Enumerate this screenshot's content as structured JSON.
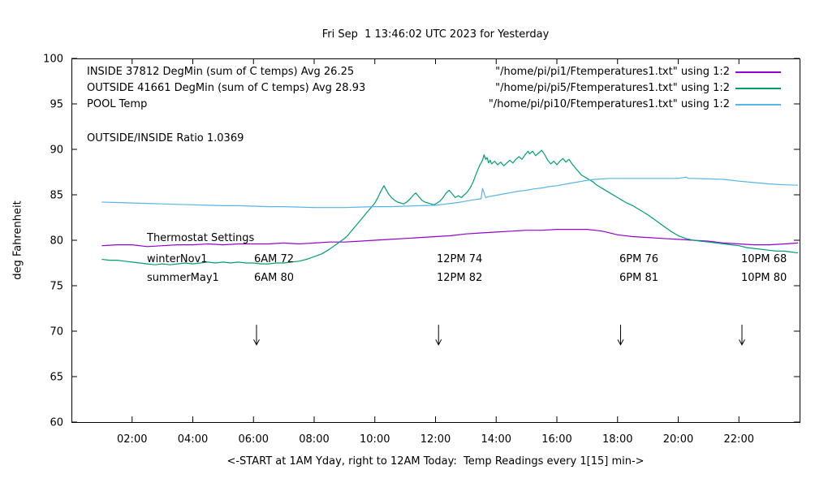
{
  "title": "Fri Sep  1 13:46:02 UTC 2023 for Yesterday",
  "xlabel": "<-START at 1AM Yday, right to 12AM Today:  Temp Readings every 1[15] min->",
  "ylabel": "deg Fahrenheit",
  "legend": [
    {
      "name": "INSIDE 37812 DegMin (sum of C temps) Avg 26.25",
      "file": "\"/home/pi/pi1/Ftemperatures1.txt\" using 1:2",
      "color": "#9400d3"
    },
    {
      "name": "OUTSIDE 41661 DegMin (sum of C temps) Avg 28.93",
      "file": "\"/home/pi/pi5/Ftemperatures1.txt\" using 1:2",
      "color": "#009e73"
    },
    {
      "name": "POOL Temp",
      "file": "\"/home/pi/pi10/Ftemperatures1.txt\" using 1:2",
      "color": "#56b4e9"
    }
  ],
  "annotations": {
    "ratio": "OUTSIDE/INSIDE Ratio 1.0369",
    "thermostat_title": "Thermostat Settings"
  },
  "thermostat": {
    "rows": [
      {
        "cells": [
          "winterNov1",
          "6AM 72",
          "12PM 74",
          "6PM 76",
          "10PM 68"
        ]
      },
      {
        "cells": [
          "summerMay1",
          "6AM 80",
          "12PM 82",
          "6PM 81",
          "10PM 80"
        ]
      }
    ]
  },
  "chart_data": {
    "type": "line",
    "title": "Fri Sep  1 13:46:02 UTC 2023 for Yesterday",
    "xlabel": "<-START at 1AM Yday, right to 12AM Today:  Temp Readings every 1[15] min->",
    "ylabel": "deg Fahrenheit",
    "xlim": [
      0,
      24
    ],
    "ylim": [
      60,
      100
    ],
    "grid": false,
    "legend_position": "top-right",
    "xticks": [
      {
        "v": 2,
        "label": "02:00"
      },
      {
        "v": 4,
        "label": "04:00"
      },
      {
        "v": 6,
        "label": "06:00"
      },
      {
        "v": 8,
        "label": "08:00"
      },
      {
        "v": 10,
        "label": "10:00"
      },
      {
        "v": 12,
        "label": "12:00"
      },
      {
        "v": 14,
        "label": "14:00"
      },
      {
        "v": 16,
        "label": "16:00"
      },
      {
        "v": 18,
        "label": "18:00"
      },
      {
        "v": 20,
        "label": "20:00"
      },
      {
        "v": 22,
        "label": "22:00"
      }
    ],
    "yticks": [
      60,
      65,
      70,
      75,
      80,
      85,
      90,
      95,
      100
    ],
    "arrows_x": [
      6.1,
      12.1,
      18.1,
      22.1
    ],
    "arrow_y": [
      70.7,
      68.5
    ],
    "series": [
      {
        "name": "INSIDE",
        "color": "#9400d3",
        "points": [
          [
            1,
            79.4
          ],
          [
            1.5,
            79.5
          ],
          [
            2,
            79.5
          ],
          [
            2.5,
            79.3
          ],
          [
            3,
            79.4
          ],
          [
            3.5,
            79.5
          ],
          [
            4,
            79.5
          ],
          [
            4.5,
            79.6
          ],
          [
            5,
            79.5
          ],
          [
            5.5,
            79.6
          ],
          [
            6,
            79.6
          ],
          [
            6.5,
            79.6
          ],
          [
            7,
            79.7
          ],
          [
            7.5,
            79.6
          ],
          [
            8,
            79.7
          ],
          [
            8.5,
            79.8
          ],
          [
            9,
            79.8
          ],
          [
            9.5,
            79.9
          ],
          [
            10,
            80.0
          ],
          [
            10.5,
            80.1
          ],
          [
            11,
            80.2
          ],
          [
            11.5,
            80.3
          ],
          [
            12,
            80.4
          ],
          [
            12.5,
            80.5
          ],
          [
            13,
            80.7
          ],
          [
            13.5,
            80.8
          ],
          [
            14,
            80.9
          ],
          [
            14.5,
            81.0
          ],
          [
            15,
            81.1
          ],
          [
            15.5,
            81.1
          ],
          [
            16,
            81.2
          ],
          [
            16.5,
            81.2
          ],
          [
            17,
            81.2
          ],
          [
            17.25,
            81.1
          ],
          [
            17.5,
            81.0
          ],
          [
            18,
            80.6
          ],
          [
            18.5,
            80.4
          ],
          [
            19,
            80.3
          ],
          [
            19.5,
            80.2
          ],
          [
            20,
            80.1
          ],
          [
            20.5,
            80.0
          ],
          [
            21,
            79.9
          ],
          [
            21.25,
            79.8
          ],
          [
            21.5,
            79.7
          ],
          [
            22,
            79.6
          ],
          [
            22.5,
            79.5
          ],
          [
            23,
            79.5
          ],
          [
            23.5,
            79.6
          ],
          [
            23.95,
            79.7
          ]
        ]
      },
      {
        "name": "OUTSIDE",
        "color": "#009e73",
        "points": [
          [
            1,
            77.9
          ],
          [
            1.25,
            77.8
          ],
          [
            1.5,
            77.8
          ],
          [
            1.75,
            77.7
          ],
          [
            2,
            77.6
          ],
          [
            2.25,
            77.5
          ],
          [
            2.5,
            77.4
          ],
          [
            2.75,
            77.3
          ],
          [
            3,
            77.4
          ],
          [
            3.25,
            77.3
          ],
          [
            3.5,
            77.4
          ],
          [
            3.75,
            77.5
          ],
          [
            4,
            77.4
          ],
          [
            4.25,
            77.5
          ],
          [
            4.5,
            77.6
          ],
          [
            4.75,
            77.5
          ],
          [
            5,
            77.6
          ],
          [
            5.25,
            77.5
          ],
          [
            5.5,
            77.6
          ],
          [
            5.75,
            77.5
          ],
          [
            6,
            77.5
          ],
          [
            6.25,
            77.4
          ],
          [
            6.5,
            77.4
          ],
          [
            6.75,
            77.5
          ],
          [
            7,
            77.5
          ],
          [
            7.25,
            77.6
          ],
          [
            7.5,
            77.7
          ],
          [
            7.75,
            77.9
          ],
          [
            8,
            78.2
          ],
          [
            8.25,
            78.5
          ],
          [
            8.5,
            79.0
          ],
          [
            8.75,
            79.6
          ],
          [
            9,
            80.2
          ],
          [
            9.1,
            80.5
          ],
          [
            9.2,
            80.9
          ],
          [
            9.3,
            81.3
          ],
          [
            9.4,
            81.7
          ],
          [
            9.5,
            82.1
          ],
          [
            9.6,
            82.5
          ],
          [
            9.7,
            82.9
          ],
          [
            9.8,
            83.3
          ],
          [
            9.9,
            83.7
          ],
          [
            10,
            84.1
          ],
          [
            10.1,
            84.7
          ],
          [
            10.2,
            85.4
          ],
          [
            10.3,
            86.0
          ],
          [
            10.35,
            85.7
          ],
          [
            10.45,
            85.1
          ],
          [
            10.55,
            84.7
          ],
          [
            10.65,
            84.4
          ],
          [
            10.75,
            84.2
          ],
          [
            10.85,
            84.1
          ],
          [
            10.95,
            84.0
          ],
          [
            11.05,
            84.2
          ],
          [
            11.15,
            84.5
          ],
          [
            11.25,
            84.9
          ],
          [
            11.35,
            85.2
          ],
          [
            11.45,
            84.8
          ],
          [
            11.55,
            84.4
          ],
          [
            11.65,
            84.2
          ],
          [
            11.75,
            84.1
          ],
          [
            11.85,
            84.0
          ],
          [
            11.95,
            83.9
          ],
          [
            12.05,
            84.1
          ],
          [
            12.15,
            84.3
          ],
          [
            12.25,
            84.7
          ],
          [
            12.35,
            85.2
          ],
          [
            12.45,
            85.5
          ],
          [
            12.55,
            85.1
          ],
          [
            12.65,
            84.7
          ],
          [
            12.75,
            84.9
          ],
          [
            12.85,
            84.7
          ],
          [
            12.95,
            85.0
          ],
          [
            13.05,
            85.3
          ],
          [
            13.15,
            85.8
          ],
          [
            13.25,
            86.5
          ],
          [
            13.35,
            87.4
          ],
          [
            13.45,
            88.2
          ],
          [
            13.55,
            88.8
          ],
          [
            13.6,
            89.4
          ],
          [
            13.65,
            88.9
          ],
          [
            13.7,
            89.1
          ],
          [
            13.75,
            88.5
          ],
          [
            13.8,
            88.8
          ],
          [
            13.85,
            88.4
          ],
          [
            13.95,
            88.7
          ],
          [
            14.05,
            88.3
          ],
          [
            14.15,
            88.6
          ],
          [
            14.25,
            88.2
          ],
          [
            14.35,
            88.5
          ],
          [
            14.45,
            88.8
          ],
          [
            14.55,
            88.5
          ],
          [
            14.65,
            88.9
          ],
          [
            14.75,
            89.2
          ],
          [
            14.85,
            88.9
          ],
          [
            14.95,
            89.4
          ],
          [
            15.05,
            89.8
          ],
          [
            15.1,
            89.5
          ],
          [
            15.2,
            89.8
          ],
          [
            15.3,
            89.3
          ],
          [
            15.4,
            89.6
          ],
          [
            15.5,
            89.9
          ],
          [
            15.6,
            89.4
          ],
          [
            15.7,
            88.8
          ],
          [
            15.8,
            88.4
          ],
          [
            15.9,
            88.7
          ],
          [
            16,
            88.3
          ],
          [
            16.1,
            88.7
          ],
          [
            16.2,
            89.0
          ],
          [
            16.3,
            88.6
          ],
          [
            16.4,
            88.9
          ],
          [
            16.5,
            88.4
          ],
          [
            16.6,
            88.0
          ],
          [
            16.7,
            87.6
          ],
          [
            16.8,
            87.2
          ],
          [
            16.9,
            87.0
          ],
          [
            17,
            86.8
          ],
          [
            17.1,
            86.6
          ],
          [
            17.2,
            86.4
          ],
          [
            17.3,
            86.1
          ],
          [
            17.4,
            85.9
          ],
          [
            17.5,
            85.7
          ],
          [
            17.75,
            85.2
          ],
          [
            18,
            84.7
          ],
          [
            18.25,
            84.2
          ],
          [
            18.5,
            83.8
          ],
          [
            18.75,
            83.3
          ],
          [
            19,
            82.8
          ],
          [
            19.25,
            82.2
          ],
          [
            19.5,
            81.6
          ],
          [
            19.75,
            81.0
          ],
          [
            20,
            80.5
          ],
          [
            20.25,
            80.2
          ],
          [
            20.5,
            80.0
          ],
          [
            20.75,
            79.9
          ],
          [
            21,
            79.8
          ],
          [
            21.25,
            79.7
          ],
          [
            21.5,
            79.6
          ],
          [
            21.75,
            79.5
          ],
          [
            22,
            79.4
          ],
          [
            22.25,
            79.2
          ],
          [
            22.5,
            79.1
          ],
          [
            23,
            78.9
          ],
          [
            23.25,
            78.8
          ],
          [
            23.5,
            78.8
          ],
          [
            23.75,
            78.7
          ],
          [
            23.95,
            78.6
          ]
        ]
      },
      {
        "name": "POOL",
        "color": "#56b4e9",
        "points": [
          [
            1,
            84.2
          ],
          [
            1.5,
            84.15
          ],
          [
            2,
            84.1
          ],
          [
            2.5,
            84.05
          ],
          [
            3,
            84.0
          ],
          [
            3.5,
            83.95
          ],
          [
            4,
            83.9
          ],
          [
            4.5,
            83.85
          ],
          [
            5,
            83.8
          ],
          [
            5.5,
            83.8
          ],
          [
            6,
            83.75
          ],
          [
            6.5,
            83.7
          ],
          [
            7,
            83.7
          ],
          [
            7.5,
            83.65
          ],
          [
            8,
            83.6
          ],
          [
            8.5,
            83.6
          ],
          [
            9,
            83.6
          ],
          [
            9.5,
            83.65
          ],
          [
            10,
            83.7
          ],
          [
            10.5,
            83.7
          ],
          [
            11,
            83.75
          ],
          [
            11.5,
            83.8
          ],
          [
            12,
            83.85
          ],
          [
            12.25,
            83.95
          ],
          [
            12.5,
            84.05
          ],
          [
            12.75,
            84.15
          ],
          [
            13,
            84.3
          ],
          [
            13.25,
            84.45
          ],
          [
            13.5,
            84.55
          ],
          [
            13.55,
            85.7
          ],
          [
            13.65,
            84.7
          ],
          [
            13.75,
            84.8
          ],
          [
            14,
            84.95
          ],
          [
            14.25,
            85.1
          ],
          [
            14.5,
            85.25
          ],
          [
            14.75,
            85.4
          ],
          [
            15,
            85.5
          ],
          [
            15.25,
            85.65
          ],
          [
            15.5,
            85.75
          ],
          [
            15.75,
            85.9
          ],
          [
            16,
            86.0
          ],
          [
            16.25,
            86.15
          ],
          [
            16.5,
            86.3
          ],
          [
            16.75,
            86.45
          ],
          [
            17,
            86.6
          ],
          [
            17.25,
            86.7
          ],
          [
            17.5,
            86.75
          ],
          [
            17.75,
            86.8
          ],
          [
            18,
            86.8
          ],
          [
            18.5,
            86.8
          ],
          [
            19,
            86.8
          ],
          [
            19.5,
            86.8
          ],
          [
            20,
            86.8
          ],
          [
            20.25,
            86.95
          ],
          [
            20.35,
            86.8
          ],
          [
            20.5,
            86.8
          ],
          [
            21,
            86.75
          ],
          [
            21.5,
            86.7
          ],
          [
            22,
            86.5
          ],
          [
            22.5,
            86.35
          ],
          [
            23,
            86.2
          ],
          [
            23.5,
            86.1
          ],
          [
            23.95,
            86.05
          ]
        ]
      }
    ]
  }
}
